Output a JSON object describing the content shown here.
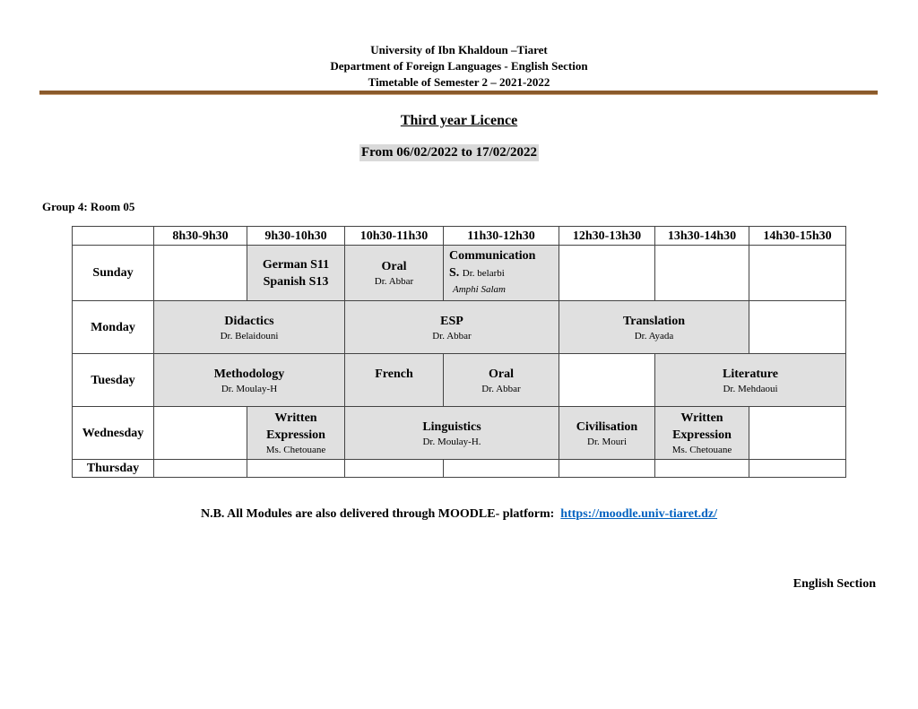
{
  "header": {
    "line1": "University of Ibn Khaldoun –Tiaret",
    "line2": "Department of Foreign Languages - English Section",
    "line3": "Timetable of Semester 2 – 2021-2022"
  },
  "title": "Third year Licence",
  "dates": "From 06/02/2022 to 17/02/2022",
  "group": "Group 4: Room 05",
  "times": [
    "8h30-9h30",
    "9h30-10h30",
    "10h30-11h30",
    "11h30-12h30",
    "12h30-13h30",
    "13h30-14h30",
    "14h30-15h30"
  ],
  "days": [
    "Sunday",
    "Monday",
    "Tuesday",
    "Wednesday",
    "Thursday"
  ],
  "sunday": {
    "lang1": "German S11",
    "lang2": "Spanish S13",
    "oral": "Oral",
    "oral_t": "Dr. Abbar",
    "comm1": "Communication",
    "comm2": "S.",
    "comm_t": "Dr. belarbi",
    "comm_room": "Amphi Salam"
  },
  "monday": {
    "did": "Didactics",
    "did_t": "Dr. Belaidouni",
    "esp": "ESP",
    "esp_t": "Dr. Abbar",
    "tr": "Translation",
    "tr_t": "Dr. Ayada"
  },
  "tuesday": {
    "meth": "Methodology",
    "meth_t": "Dr. Moulay-H",
    "fr": "French",
    "oral": "Oral",
    "oral_t": "Dr. Abbar",
    "lit": "Literature",
    "lit_t": "Dr. Mehdaoui"
  },
  "wednesday": {
    "we1": "Written",
    "we2": "Expression",
    "we_t": "Ms. Chetouane",
    "ling": "Linguistics",
    "ling_t": "Dr. Moulay-H.",
    "civ": "Civilisation",
    "civ_t": "Dr. Mouri",
    "we2_1": "Written",
    "we2_2": "Expression",
    "we2_t": "Ms. Chetouane"
  },
  "note": {
    "text": "N.B.  All Modules are also delivered through MOODLE- platform:",
    "link": "https://moodle.univ-tiaret.dz/"
  },
  "signature": "English Section",
  "colors": {
    "rule": "#8a5a2b",
    "cell": "#e0e0e0",
    "link": "#0563c1"
  }
}
